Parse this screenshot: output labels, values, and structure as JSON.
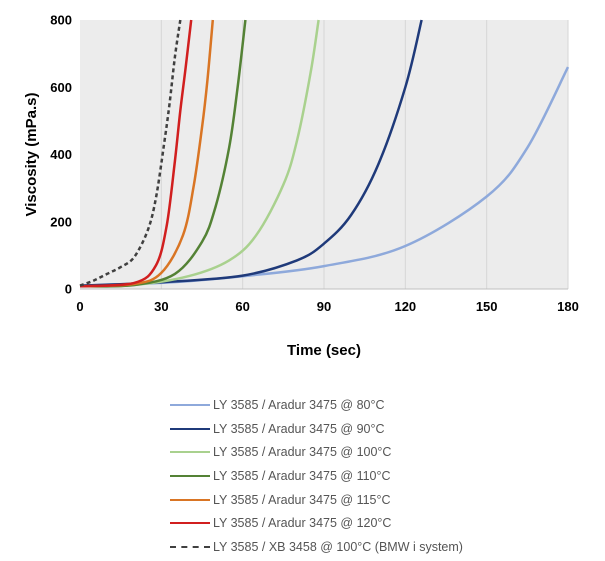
{
  "chart_data": {
    "type": "line",
    "xlabel": "Time (sec)",
    "ylabel": "Viscosity (mPa.s)",
    "xlim": [
      0,
      180
    ],
    "ylim": [
      0,
      800
    ],
    "xticks": [
      0,
      30,
      60,
      90,
      120,
      150,
      180
    ],
    "yticks": [
      0,
      200,
      400,
      600,
      800
    ],
    "grid": "vertical",
    "legend_position": "bottom",
    "series": [
      {
        "name": "LY 3585 / Aradur 3475  @ 80°C",
        "color": "#8ea9db",
        "dash": "solid",
        "x": [
          0,
          30,
          60,
          90,
          120,
          150,
          165,
          180
        ],
        "y": [
          10,
          18,
          38,
          68,
          128,
          275,
          420,
          660
        ]
      },
      {
        "name": "LY 3585 / Aradur 3475  @ 90°C",
        "color": "#1f3a7a",
        "dash": "solid",
        "x": [
          0,
          30,
          60,
          80,
          90,
          100,
          110,
          120,
          126
        ],
        "y": [
          10,
          20,
          40,
          85,
          135,
          220,
          370,
          600,
          800
        ]
      },
      {
        "name": "LY 3585 / Aradur 3475  @ 100°C",
        "color": "#a9d18e",
        "dash": "solid",
        "x": [
          0,
          20,
          40,
          55,
          65,
          75,
          80,
          85,
          88
        ],
        "y": [
          8,
          12,
          38,
          85,
          160,
          310,
          440,
          640,
          800
        ]
      },
      {
        "name": "LY 3585 / Aradur 3475  @ 110°C",
        "color": "#548235",
        "dash": "solid",
        "x": [
          0,
          20,
          35,
          45,
          50,
          55,
          58,
          61
        ],
        "y": [
          8,
          12,
          45,
          140,
          245,
          420,
          590,
          800
        ]
      },
      {
        "name": "LY 3585 / Aradur 3475  @ 115°C",
        "color": "#d97524",
        "dash": "solid",
        "x": [
          0,
          20,
          30,
          38,
          42,
          45,
          47,
          49
        ],
        "y": [
          8,
          15,
          48,
          160,
          310,
          480,
          620,
          800
        ]
      },
      {
        "name": "LY 3585 / Aradur 3475  @ 120°C",
        "color": "#d11f1f",
        "dash": "solid",
        "x": [
          0,
          20,
          28,
          32,
          35,
          37,
          39,
          41
        ],
        "y": [
          8,
          18,
          70,
          190,
          380,
          530,
          660,
          800
        ]
      },
      {
        "name": "LY 3585 / XB 3458 @ 100°C (BMW i system)",
        "color": "#404040",
        "dash": "dashed",
        "x": [
          0,
          5,
          10,
          15,
          20,
          25,
          28,
          31,
          33,
          35,
          37
        ],
        "y": [
          10,
          25,
          45,
          65,
          95,
          175,
          270,
          430,
          550,
          690,
          800
        ]
      }
    ]
  }
}
